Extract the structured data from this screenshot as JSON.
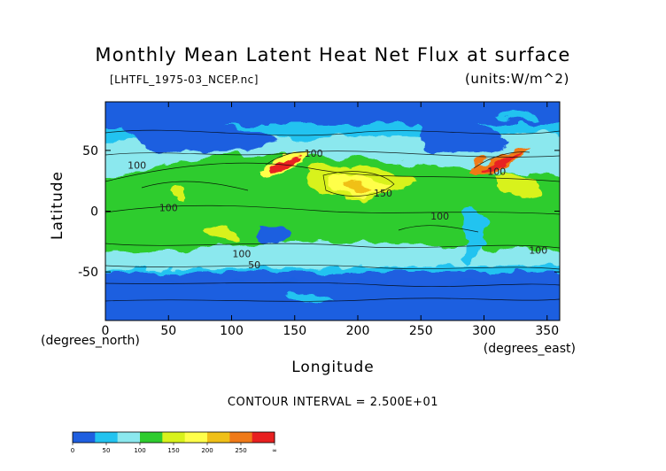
{
  "chart_data": {
    "type": "heatmap",
    "title": "Monthly Mean Latent Heat Net Flux at surface",
    "source": "[LHTFL_1975-03_NCEP.nc]",
    "units": "(units:W/m^2)",
    "xlabel": "Longitude",
    "ylabel": "Latitude",
    "x_unit_label": "(degrees_east)",
    "y_unit_label": "(degrees_north)",
    "xlim": [
      0,
      360
    ],
    "ylim": [
      -90,
      90
    ],
    "x_ticks": [
      0,
      50,
      100,
      150,
      200,
      250,
      300,
      350
    ],
    "y_ticks": [
      -50,
      0,
      50
    ],
    "contour_interval": "CONTOUR INTERVAL = 2.500E+01",
    "levels": [
      0,
      50,
      100,
      150,
      200,
      250
    ],
    "colorbar_labels": [
      "0",
      "50",
      "100",
      "150",
      "200",
      "250",
      "∞"
    ],
    "colors": [
      "#1f5fe0",
      "#22c3f0",
      "#8be8ee",
      "#2ecc2e",
      "#d8f21c",
      "#ffff4a",
      "#f0c018",
      "#f07a18",
      "#e82020"
    ],
    "contour_labels": [
      {
        "text": "100",
        "x": 165,
        "y": 45
      },
      {
        "text": "100",
        "x": 310,
        "y": 30
      },
      {
        "text": "100",
        "x": 265,
        "y": -7
      },
      {
        "text": "150",
        "x": 220,
        "y": 12
      },
      {
        "text": "100",
        "x": 50,
        "y": 0
      },
      {
        "text": "100",
        "x": 108,
        "y": -38
      },
      {
        "text": "50",
        "x": 118,
        "y": -47
      },
      {
        "text": "100",
        "x": 343,
        "y": -35
      },
      {
        "text": "100",
        "x": 25,
        "y": 35
      }
    ]
  }
}
